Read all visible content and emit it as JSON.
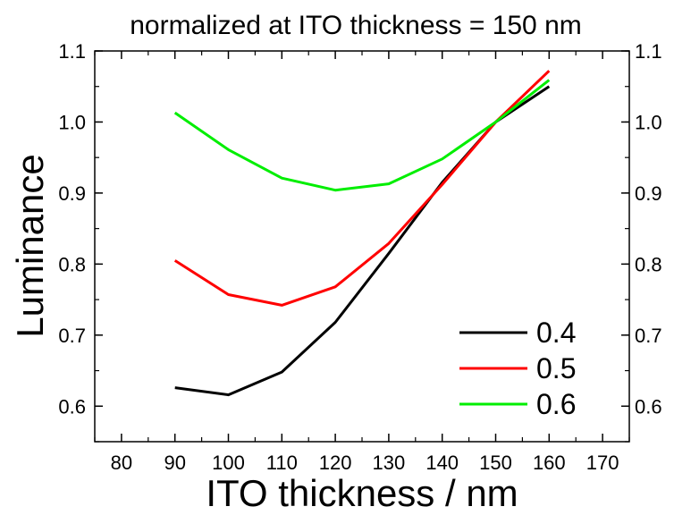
{
  "chart_data": {
    "type": "line",
    "title": "normalized at ITO thickness = 150 nm",
    "xlabel": "ITO thickness / nm",
    "ylabel": "Luminance",
    "xlim": [
      75,
      175
    ],
    "ylim": [
      0.55,
      1.1
    ],
    "x_ticks": [
      80,
      90,
      100,
      110,
      120,
      130,
      140,
      150,
      160,
      170
    ],
    "x_tick_labels": [
      "80",
      "90",
      "100",
      "110",
      "120",
      "130",
      "140",
      "150",
      "160",
      "170"
    ],
    "y_ticks": [
      0.6,
      0.7,
      0.8,
      0.9,
      1.0,
      1.1
    ],
    "y_tick_labels": [
      "0.6",
      "0.7",
      "0.8",
      "0.9",
      "1.0",
      "1.1"
    ],
    "grid": false,
    "legend_position": "bottom-right",
    "x": [
      90,
      100,
      110,
      120,
      130,
      140,
      150,
      160
    ],
    "series": [
      {
        "name": "0.4",
        "color": "#000000",
        "values": [
          0.626,
          0.616,
          0.648,
          0.718,
          0.815,
          0.915,
          1.0,
          1.05
        ]
      },
      {
        "name": "0.5",
        "color": "#ff0000",
        "values": [
          0.805,
          0.757,
          0.742,
          0.768,
          0.829,
          0.912,
          1.0,
          1.072
        ]
      },
      {
        "name": "0.6",
        "color": "#00ee00",
        "values": [
          1.013,
          0.961,
          0.921,
          0.904,
          0.913,
          0.948,
          1.0,
          1.059
        ]
      }
    ]
  }
}
